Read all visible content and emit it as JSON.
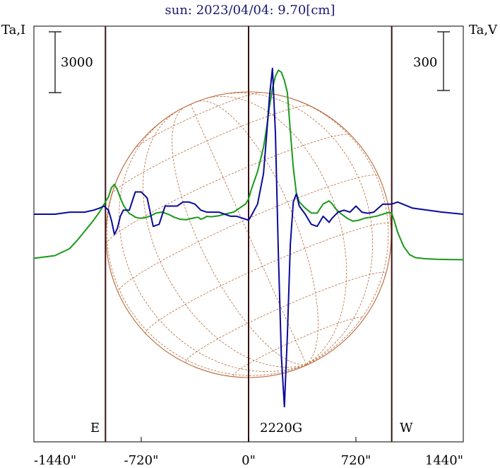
{
  "chart_data": {
    "type": "line",
    "title": "sun: 2023/04/04: 9.70[cm]",
    "ylabel_left": "Ta,I",
    "ylabel_right": "Ta,V",
    "scale_left": "3000",
    "scale_right": "300",
    "xlim": [
      -1440,
      1440
    ],
    "x_ticks": [
      -1440,
      -720,
      0,
      720,
      1440
    ],
    "x_tick_labels": [
      "-1440\"",
      "-720\"",
      "0\"",
      "720\"",
      "1440\""
    ],
    "vertical_markers": [
      -960,
      0,
      960
    ],
    "marker_labels": {
      "east": "E",
      "center": "2220G",
      "west": "W"
    },
    "colors": {
      "stokes_i": "#1a9a1a",
      "stokes_v": "#0a0a9a",
      "disk": "#b86a3a",
      "marker": "#3a1010"
    },
    "series": [
      {
        "key": "I",
        "x": [
          -1440,
          -1300,
          -1200,
          -1150,
          -1100,
          -1050,
          -1000,
          -970,
          -940,
          -920,
          -900,
          -880,
          -860,
          -840,
          -820,
          -800,
          -780,
          -760,
          -740,
          -720,
          -700,
          -660,
          -620,
          -580,
          -540,
          -500,
          -460,
          -420,
          -380,
          -340,
          -320,
          -300,
          -280,
          -250,
          -200,
          -160,
          -100,
          -60,
          -20,
          0,
          20,
          60,
          100,
          120,
          140,
          160,
          180,
          200,
          220,
          240,
          260,
          280,
          300,
          320,
          340,
          380,
          420,
          460,
          500,
          540,
          560,
          580,
          600,
          620,
          660,
          700,
          740,
          780,
          820,
          860,
          900,
          940,
          960,
          980,
          1000,
          1040,
          1080,
          1120,
          1180,
          1260,
          1340,
          1440
        ],
        "y": [
          -2280,
          -2150,
          -1800,
          -1400,
          -950,
          -500,
          0,
          380,
          750,
          1200,
          1370,
          1100,
          700,
          350,
          120,
          -70,
          -150,
          -250,
          -290,
          -300,
          -290,
          -200,
          -50,
          0,
          -100,
          -250,
          -350,
          -380,
          -310,
          -250,
          -350,
          -300,
          -210,
          -230,
          -180,
          -100,
          0,
          200,
          400,
          650,
          1150,
          2000,
          3200,
          4100,
          5200,
          6100,
          6700,
          7000,
          6900,
          6500,
          5900,
          4000,
          2200,
          950,
          500,
          200,
          -50,
          -50,
          400,
          550,
          420,
          200,
          50,
          -80,
          -300,
          -450,
          -400,
          -300,
          -250,
          -200,
          -100,
          -20,
          -50,
          -500,
          -1000,
          -1700,
          -2100,
          -2250,
          -2300,
          -2330,
          -2340,
          -2350
        ]
      },
      {
        "key": "V",
        "x": [
          -1440,
          -1300,
          -1200,
          -1100,
          -1040,
          -1000,
          -970,
          -940,
          -920,
          -900,
          -880,
          -860,
          -840,
          -800,
          -760,
          -720,
          -680,
          -640,
          -600,
          -560,
          -520,
          -480,
          -440,
          -400,
          -360,
          -320,
          -280,
          -240,
          -200,
          -160,
          -120,
          -80,
          -40,
          0,
          20,
          60,
          100,
          120,
          140,
          160,
          180,
          200,
          220,
          240,
          260,
          280,
          300,
          320,
          340,
          380,
          420,
          460,
          500,
          540,
          560,
          600,
          640,
          680,
          720,
          760,
          800,
          840,
          900,
          960,
          1000,
          1100,
          1200,
          1300,
          1440
        ],
        "y": [
          0,
          0,
          10,
          10,
          20,
          30,
          40,
          20,
          -30,
          -100,
          -70,
          -10,
          20,
          20,
          110,
          110,
          80,
          -60,
          -50,
          40,
          40,
          40,
          60,
          60,
          50,
          20,
          10,
          10,
          10,
          0,
          -10,
          -10,
          -20,
          -30,
          -5,
          50,
          200,
          380,
          580,
          720,
          400,
          -200,
          -700,
          -950,
          -600,
          -150,
          60,
          100,
          40,
          0,
          -50,
          -60,
          -10,
          -40,
          -20,
          10,
          20,
          10,
          40,
          10,
          5,
          10,
          50,
          50,
          60,
          30,
          20,
          10,
          0
        ]
      }
    ]
  }
}
